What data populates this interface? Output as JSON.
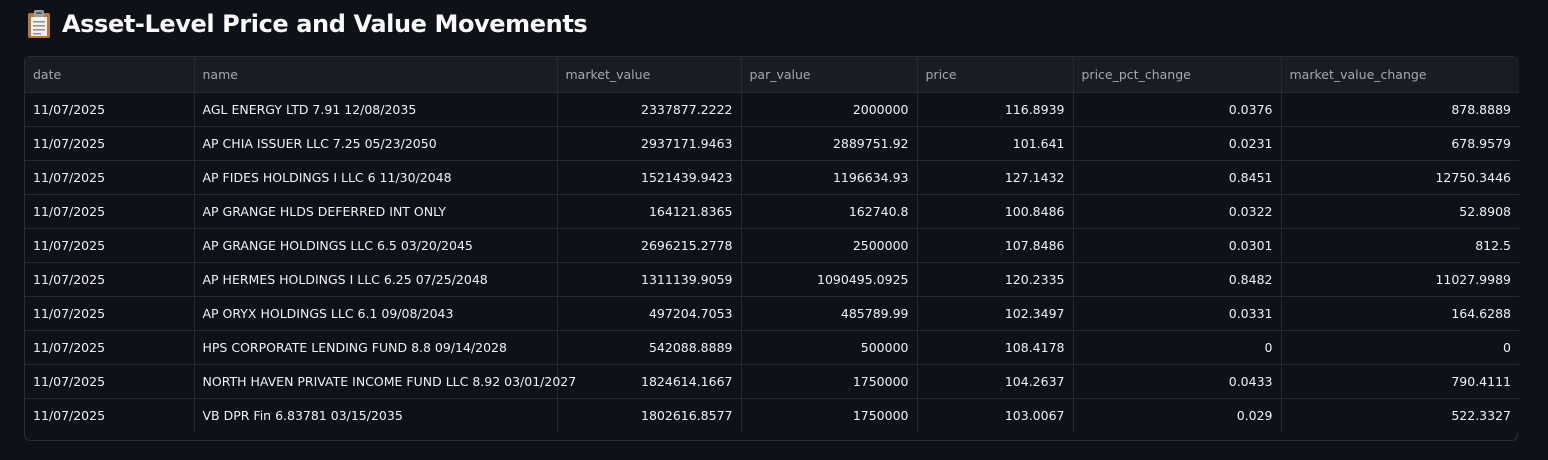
{
  "header": {
    "icon": "clipboard-icon",
    "title": "Asset-Level Price and Value Movements"
  },
  "table": {
    "columns": [
      "date",
      "name",
      "market_value",
      "par_value",
      "price",
      "price_pct_change",
      "market_value_change"
    ],
    "rows": [
      [
        "11/07/2025",
        "AGL ENERGY LTD 7.91 12/08/2035",
        "2337877.2222",
        "2000000",
        "116.8939",
        "0.0376",
        "878.8889"
      ],
      [
        "11/07/2025",
        "AP CHIA ISSUER LLC 7.25 05/23/2050",
        "2937171.9463",
        "2889751.92",
        "101.641",
        "0.0231",
        "678.9579"
      ],
      [
        "11/07/2025",
        "AP FIDES HOLDINGS I LLC 6 11/30/2048",
        "1521439.9423",
        "1196634.93",
        "127.1432",
        "0.8451",
        "12750.3446"
      ],
      [
        "11/07/2025",
        "AP GRANGE HLDS DEFERRED INT ONLY",
        "164121.8365",
        "162740.8",
        "100.8486",
        "0.0322",
        "52.8908"
      ],
      [
        "11/07/2025",
        "AP GRANGE HOLDINGS LLC 6.5 03/20/2045",
        "2696215.2778",
        "2500000",
        "107.8486",
        "0.0301",
        "812.5"
      ],
      [
        "11/07/2025",
        "AP HERMES HOLDINGS I LLC 6.25 07/25/2048",
        "1311139.9059",
        "1090495.0925",
        "120.2335",
        "0.8482",
        "11027.9989"
      ],
      [
        "11/07/2025",
        "AP ORYX HOLDINGS LLC 6.1 09/08/2043",
        "497204.7053",
        "485789.99",
        "102.3497",
        "0.0331",
        "164.6288"
      ],
      [
        "11/07/2025",
        "HPS CORPORATE LENDING FUND 8.8 09/14/2028",
        "542088.8889",
        "500000",
        "108.4178",
        "0",
        "0"
      ],
      [
        "11/07/2025",
        "NORTH HAVEN PRIVATE INCOME FUND LLC 8.92 03/01/2027",
        "1824614.1667",
        "1750000",
        "104.2637",
        "0.0433",
        "790.4111"
      ],
      [
        "11/07/2025",
        "VB DPR Fin 6.83781 03/15/2035",
        "1802616.8577",
        "1750000",
        "103.0067",
        "0.029",
        "522.3327"
      ]
    ]
  }
}
